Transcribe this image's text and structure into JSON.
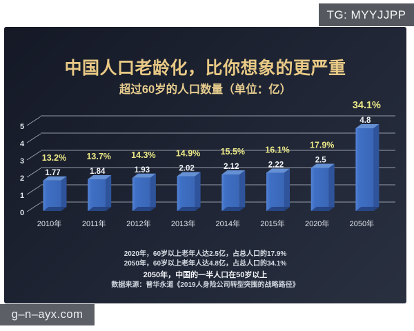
{
  "watermarks": {
    "telegram": "TG: MYYJJPP",
    "site": "g–n–ayx.com"
  },
  "chart_data": {
    "type": "bar",
    "style": "3d-column",
    "title": "中国人口老龄化，比你想象的更严重",
    "subtitle": "超过60岁的人口数量（单位：亿）",
    "categories": [
      "2010年",
      "2011年",
      "2012年",
      "2013年",
      "2014年",
      "2015年",
      "2020年",
      "2050年"
    ],
    "values": [
      1.77,
      1.84,
      1.93,
      2.02,
      2.12,
      2.22,
      2.5,
      4.8
    ],
    "percent_labels": [
      "13.2%",
      "13.7%",
      "14.3%",
      "14.9%",
      "15.5%",
      "16.1%",
      "17.9%",
      "34.1%"
    ],
    "xlabel": "",
    "ylabel": "",
    "ylim": [
      0,
      5
    ],
    "yticks": [
      0,
      1,
      2,
      3,
      4,
      5
    ],
    "grid": true,
    "legend": false,
    "annotations": [
      "2020年，60岁以上老年人达2.5亿，占总人口的17.9%",
      "2050年，60岁以上老年人达4.8亿，占总人口的34.1%",
      "2050年，中国的一半人口在50岁以上",
      "数据来源：普华永道《2019人身险公司转型突围的战略路径》"
    ]
  },
  "colors": {
    "panel_bg": "#1e2433",
    "title_gold": "#e8c985",
    "percent_yellow": "#ebe887",
    "value_white": "#f0f3f7",
    "axis_text": "#e2e6ed",
    "grid_line": "#bdc4d0",
    "bar_front": "#3f70c5",
    "bar_front_light": "#5584d6",
    "bar_top": "#6590d4",
    "bar_side": "#2f549b",
    "bar_base": "#23407a",
    "watermark_bg": "#55595f"
  }
}
